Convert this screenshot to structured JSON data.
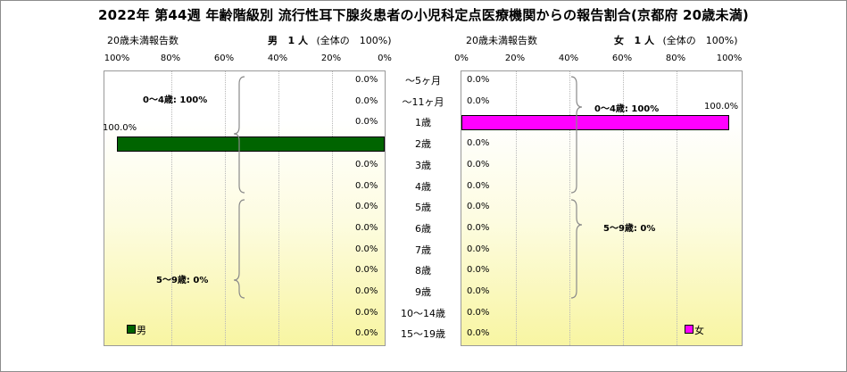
{
  "title": "2022年 第44週 年齢階級別 流行性耳下腺炎患者の小児科定点医療機関からの報告割合(京都府 20歳未満)",
  "male_panel": {
    "report_label": "20歳未満報告数",
    "sex": "男",
    "count_text": "1 人",
    "share_text": "(全体の　100%)",
    "legend": "男",
    "color": "#006400",
    "group_labels": [
      "0～4歳: 100%",
      "5～9歳: 0%"
    ],
    "ticks": [
      "100%",
      "80%",
      "60%",
      "40%",
      "20%",
      "0%"
    ]
  },
  "female_panel": {
    "report_label": "20歳未満報告数",
    "sex": "女",
    "count_text": "1 人",
    "share_text": "(全体の　100%)",
    "legend": "女",
    "color": "#ff00ff",
    "group_labels": [
      "0～4歳: 100%",
      "5～9歳: 0%"
    ],
    "ticks": [
      "0%",
      "20%",
      "40%",
      "60%",
      "80%",
      "100%"
    ]
  },
  "chart_data": {
    "type": "bar",
    "orientation": "horizontal",
    "layout": "population-pyramid",
    "title": "2022年 第44週 年齢階級別 流行性耳下腺炎患者の小児科定点医療機関からの報告割合(京都府 20歳未満)",
    "categories": [
      "～5ヶ月",
      "～11ヶ月",
      "1歳",
      "2歳",
      "3歳",
      "4歳",
      "5歳",
      "6歳",
      "7歳",
      "8歳",
      "9歳",
      "10～14歳",
      "15～19歳"
    ],
    "xlim": [
      0,
      100
    ],
    "x_unit": "%",
    "series": [
      {
        "name": "男",
        "color": "#006400",
        "values": [
          0,
          0,
          0,
          100,
          0,
          0,
          0,
          0,
          0,
          0,
          0,
          0,
          0
        ],
        "labels": [
          "0.0%",
          "0.0%",
          "0.0%",
          "100.0%",
          "0.0%",
          "0.0%",
          "0.0%",
          "0.0%",
          "0.0%",
          "0.0%",
          "0.0%",
          "0.0%",
          "0.0%"
        ]
      },
      {
        "name": "女",
        "color": "#ff00ff",
        "values": [
          0,
          0,
          100,
          0,
          0,
          0,
          0,
          0,
          0,
          0,
          0,
          0,
          0
        ],
        "labels": [
          "0.0%",
          "0.0%",
          "100.0%",
          "0.0%",
          "0.0%",
          "0.0%",
          "0.0%",
          "0.0%",
          "0.0%",
          "0.0%",
          "0.0%",
          "0.0%",
          "0.0%"
        ]
      }
    ],
    "grid": true,
    "legend_position": "bottom-left / bottom-right"
  }
}
